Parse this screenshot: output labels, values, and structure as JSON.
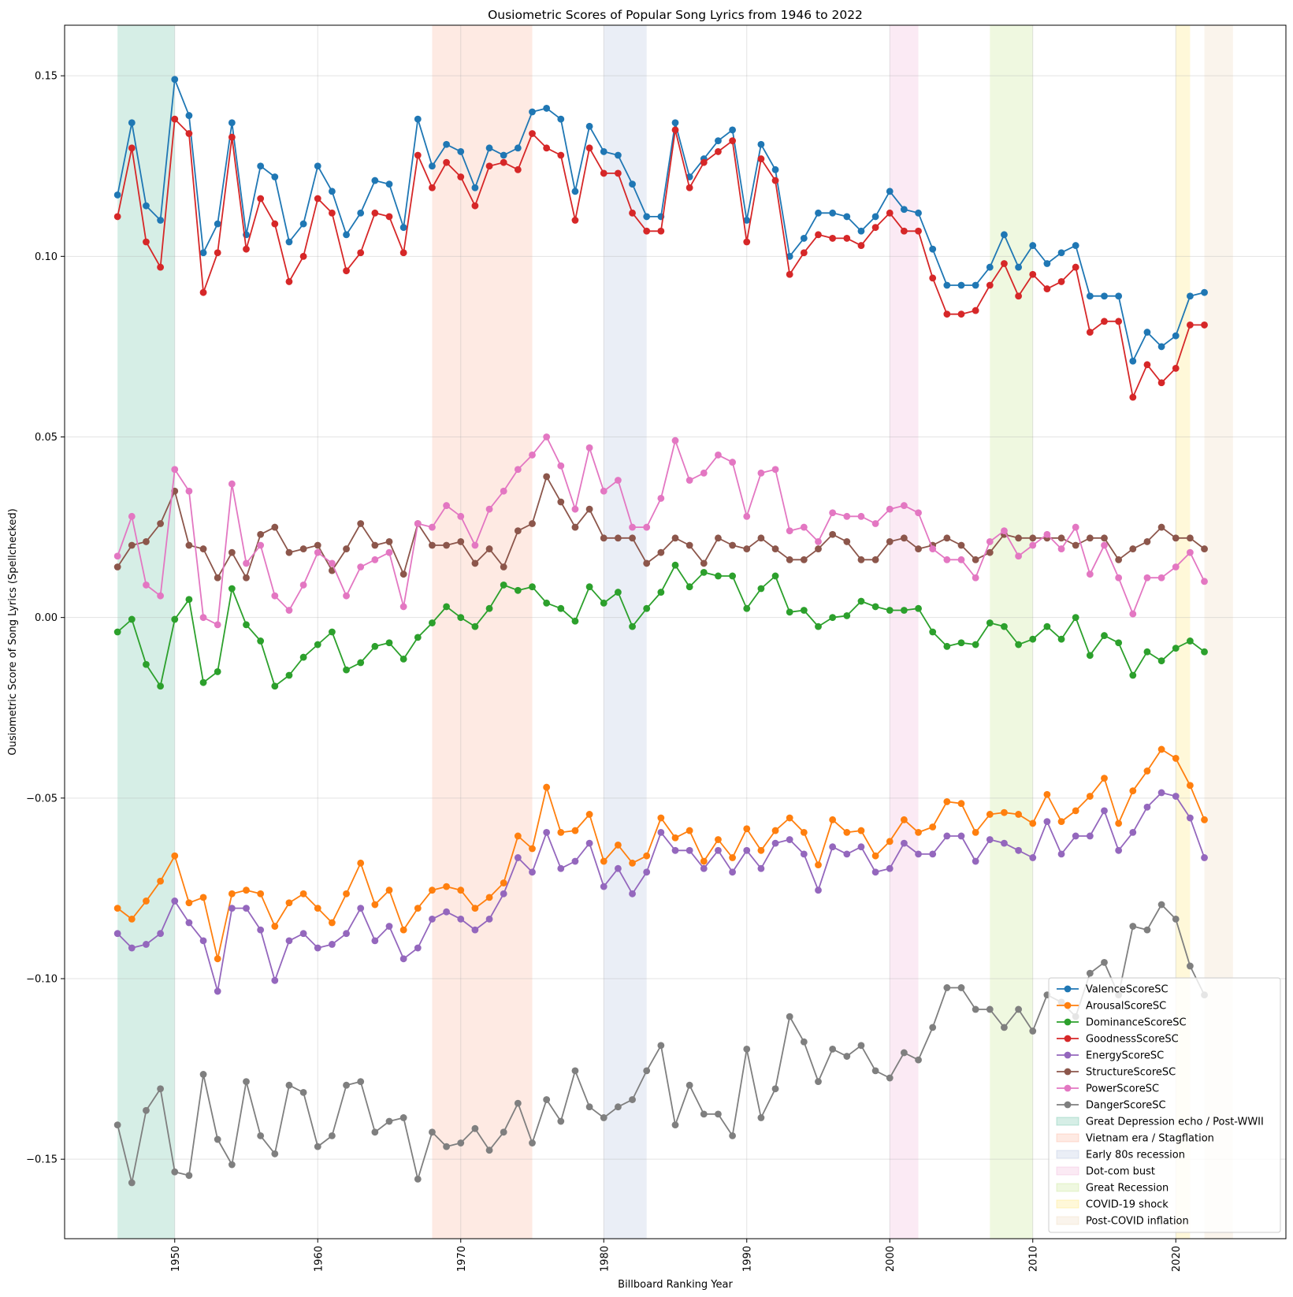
{
  "chart_data": {
    "type": "line",
    "title": "Ousiometric Scores of Popular Song Lyrics from 1946 to 2022",
    "xlabel": "Billboard Ranking Year",
    "ylabel": "Ousiometric Score of Song Lyrics (Spellchecked)",
    "xlim": [
      1942.2,
      1927.9
    ],
    "ylim": [
      -0.172,
      0.164
    ],
    "xticks": [
      "1950",
      "1960",
      "1970",
      "1980",
      "1990",
      "2000",
      "2010",
      "2020"
    ],
    "yticks": [
      "0.15",
      "0.10",
      "0.05",
      "0.00",
      "−0.05",
      "−0.10",
      "−0.15"
    ],
    "grid": true,
    "legend_position": "lower right",
    "x": [
      1946,
      1947,
      1948,
      1949,
      1950,
      1951,
      1952,
      1953,
      1954,
      1955,
      1956,
      1957,
      1958,
      1959,
      1960,
      1961,
      1962,
      1963,
      1964,
      1965,
      1966,
      1967,
      1968,
      1969,
      1970,
      1971,
      1972,
      1973,
      1974,
      1975,
      1976,
      1977,
      1978,
      1979,
      1980,
      1981,
      1982,
      1983,
      1984,
      1985,
      1986,
      1987,
      1988,
      1989,
      1990,
      1991,
      1992,
      1993,
      1994,
      1995,
      1996,
      1997,
      1998,
      1999,
      2000,
      2001,
      2002,
      2003,
      2004,
      2005,
      2006,
      2007,
      2008,
      2009,
      2010,
      2011,
      2012,
      2013,
      2014,
      2015,
      2016,
      2017,
      2018,
      2019,
      2020,
      2021,
      2022
    ],
    "series": [
      {
        "name": "ValenceScoreSC",
        "color": "#1f77b4",
        "values": [
          0.117,
          0.137,
          0.114,
          0.11,
          0.149,
          0.139,
          0.101,
          0.109,
          0.137,
          0.106,
          0.125,
          0.122,
          0.104,
          0.109,
          0.125,
          0.118,
          0.106,
          0.112,
          0.121,
          0.12,
          0.108,
          0.138,
          0.125,
          0.131,
          0.129,
          0.119,
          0.13,
          0.128,
          0.13,
          0.14,
          0.141,
          0.138,
          0.118,
          0.136,
          0.129,
          0.128,
          0.12,
          0.111,
          0.111,
          0.137,
          0.122,
          0.127,
          0.132,
          0.135,
          0.11,
          0.131,
          0.124,
          0.1,
          0.105,
          0.112,
          0.112,
          0.111,
          0.107,
          0.111,
          0.118,
          0.113,
          0.112,
          0.102,
          0.092,
          0.092,
          0.092,
          0.097,
          0.106,
          0.097,
          0.103,
          0.098,
          0.101,
          0.103,
          0.089,
          0.089,
          0.089,
          0.071,
          0.079,
          0.075,
          0.078,
          0.089,
          0.09
        ]
      },
      {
        "name": "ArousalScoreSC",
        "color": "#ff7f0e",
        "values": [
          -0.0805,
          -0.0835,
          -0.0785,
          -0.073,
          -0.066,
          -0.079,
          -0.0775,
          -0.0945,
          -0.0765,
          -0.0755,
          -0.0765,
          -0.0855,
          -0.079,
          -0.0765,
          -0.0805,
          -0.0845,
          -0.0765,
          -0.068,
          -0.0795,
          -0.0755,
          -0.0865,
          -0.0805,
          -0.0755,
          -0.0745,
          -0.0755,
          -0.0805,
          -0.0775,
          -0.0735,
          -0.0605,
          -0.064,
          -0.047,
          -0.0595,
          -0.059,
          -0.0545,
          -0.0675,
          -0.063,
          -0.068,
          -0.066,
          -0.0555,
          -0.061,
          -0.059,
          -0.0675,
          -0.0615,
          -0.0665,
          -0.0585,
          -0.0645,
          -0.059,
          -0.0555,
          -0.0595,
          -0.0685,
          -0.056,
          -0.0595,
          -0.059,
          -0.066,
          -0.062,
          -0.056,
          -0.0595,
          -0.058,
          -0.051,
          -0.0515,
          -0.0595,
          -0.0545,
          -0.054,
          -0.0545,
          -0.057,
          -0.049,
          -0.0565,
          -0.0535,
          -0.0495,
          -0.0445,
          -0.057,
          -0.048,
          -0.0425,
          -0.0365,
          -0.039,
          -0.0465,
          -0.056
        ]
      },
      {
        "name": "DominanceScoreSC",
        "color": "#2ca02c",
        "values": [
          -0.004,
          -0.0005,
          -0.013,
          -0.019,
          -0.0005,
          0.005,
          -0.018,
          -0.015,
          0.008,
          -0.002,
          -0.0065,
          -0.019,
          -0.016,
          -0.011,
          -0.0075,
          -0.004,
          -0.0145,
          -0.0125,
          -0.008,
          -0.007,
          -0.0115,
          -0.0055,
          -0.0015,
          0.003,
          0.0,
          -0.0025,
          0.0025,
          0.009,
          0.0075,
          0.0085,
          0.004,
          0.0025,
          -0.001,
          0.0085,
          0.004,
          0.007,
          -0.0025,
          0.0025,
          0.007,
          0.0145,
          0.0085,
          0.0125,
          0.0115,
          0.0115,
          0.0025,
          0.008,
          0.0115,
          0.0015,
          0.002,
          -0.0025,
          0.0,
          0.0005,
          0.0045,
          0.003,
          0.002,
          0.002,
          0.0025,
          -0.004,
          -0.008,
          -0.007,
          -0.0075,
          -0.0015,
          -0.0025,
          -0.0075,
          -0.006,
          -0.0025,
          -0.006,
          0.0,
          -0.0105,
          -0.005,
          -0.007,
          -0.016,
          -0.0095,
          -0.012,
          -0.0085,
          -0.0065,
          -0.0095
        ]
      },
      {
        "name": "GoodnessScoreSC",
        "color": "#d62728",
        "values": [
          0.111,
          0.13,
          0.104,
          0.097,
          0.138,
          0.134,
          0.09,
          0.101,
          0.133,
          0.102,
          0.116,
          0.109,
          0.093,
          0.1,
          0.116,
          0.112,
          0.096,
          0.101,
          0.112,
          0.111,
          0.101,
          0.128,
          0.119,
          0.126,
          0.122,
          0.114,
          0.125,
          0.126,
          0.124,
          0.134,
          0.13,
          0.128,
          0.11,
          0.13,
          0.123,
          0.123,
          0.112,
          0.107,
          0.107,
          0.135,
          0.119,
          0.126,
          0.129,
          0.132,
          0.104,
          0.127,
          0.121,
          0.095,
          0.101,
          0.106,
          0.105,
          0.105,
          0.103,
          0.108,
          0.112,
          0.107,
          0.107,
          0.094,
          0.084,
          0.084,
          0.085,
          0.092,
          0.098,
          0.089,
          0.095,
          0.091,
          0.093,
          0.097,
          0.079,
          0.082,
          0.082,
          0.061,
          0.07,
          0.065,
          0.069,
          0.081,
          0.081
        ]
      },
      {
        "name": "EnergyScoreSC",
        "color": "#9467bd",
        "values": [
          -0.0875,
          -0.0915,
          -0.0905,
          -0.0875,
          -0.0785,
          -0.0845,
          -0.0895,
          -0.1035,
          -0.0805,
          -0.0805,
          -0.0865,
          -0.1005,
          -0.0895,
          -0.0875,
          -0.0915,
          -0.0905,
          -0.0875,
          -0.0805,
          -0.0895,
          -0.0855,
          -0.0945,
          -0.0915,
          -0.0835,
          -0.0815,
          -0.0835,
          -0.0865,
          -0.0835,
          -0.0765,
          -0.0665,
          -0.0705,
          -0.0595,
          -0.0695,
          -0.0675,
          -0.0625,
          -0.0745,
          -0.0695,
          -0.0765,
          -0.0705,
          -0.0595,
          -0.0645,
          -0.0645,
          -0.0695,
          -0.0645,
          -0.0705,
          -0.0645,
          -0.0695,
          -0.0625,
          -0.0615,
          -0.0655,
          -0.0755,
          -0.0635,
          -0.0655,
          -0.0635,
          -0.0705,
          -0.0695,
          -0.0625,
          -0.0655,
          -0.0655,
          -0.0605,
          -0.0605,
          -0.0675,
          -0.0615,
          -0.0625,
          -0.0645,
          -0.0665,
          -0.0565,
          -0.0655,
          -0.0605,
          -0.0605,
          -0.0535,
          -0.0645,
          -0.0595,
          -0.0525,
          -0.0485,
          -0.0495,
          -0.0555,
          -0.0665
        ]
      },
      {
        "name": "StructureScoreSC",
        "color": "#8c564b",
        "values": [
          0.014,
          0.02,
          0.021,
          0.026,
          0.035,
          0.02,
          0.019,
          0.011,
          0.018,
          0.011,
          0.023,
          0.025,
          0.018,
          0.019,
          0.02,
          0.013,
          0.019,
          0.026,
          0.02,
          0.021,
          0.012,
          0.026,
          0.02,
          0.02,
          0.021,
          0.015,
          0.019,
          0.014,
          0.024,
          0.026,
          0.039,
          0.032,
          0.025,
          0.03,
          0.022,
          0.022,
          0.022,
          0.015,
          0.018,
          0.022,
          0.02,
          0.015,
          0.022,
          0.02,
          0.019,
          0.022,
          0.019,
          0.016,
          0.016,
          0.019,
          0.023,
          0.021,
          0.016,
          0.016,
          0.021,
          0.022,
          0.019,
          0.02,
          0.022,
          0.02,
          0.016,
          0.018,
          0.023,
          0.022,
          0.022,
          0.022,
          0.022,
          0.02,
          0.022,
          0.022,
          0.016,
          0.019,
          0.021,
          0.025,
          0.022,
          0.022,
          0.019
        ]
      },
      {
        "name": "PowerScoreSC",
        "color": "#e377c2",
        "values": [
          0.017,
          0.028,
          0.009,
          0.006,
          0.041,
          0.035,
          0.0,
          -0.002,
          0.037,
          0.015,
          0.02,
          0.006,
          0.002,
          0.009,
          0.018,
          0.015,
          0.006,
          0.014,
          0.016,
          0.018,
          0.003,
          0.026,
          0.025,
          0.031,
          0.028,
          0.02,
          0.03,
          0.035,
          0.041,
          0.045,
          0.05,
          0.042,
          0.03,
          0.047,
          0.035,
          0.038,
          0.025,
          0.025,
          0.033,
          0.049,
          0.038,
          0.04,
          0.045,
          0.043,
          0.028,
          0.04,
          0.041,
          0.024,
          0.025,
          0.021,
          0.029,
          0.028,
          0.028,
          0.026,
          0.03,
          0.031,
          0.029,
          0.019,
          0.016,
          0.016,
          0.011,
          0.021,
          0.024,
          0.017,
          0.02,
          0.023,
          0.019,
          0.025,
          0.012,
          0.02,
          0.011,
          0.001,
          0.011,
          0.011,
          0.014,
          0.018,
          0.01
        ]
      },
      {
        "name": "DangerScoreSC",
        "color": "#7f7f7f",
        "values": [
          -0.1405,
          -0.1565,
          -0.1365,
          -0.1305,
          -0.1535,
          -0.1545,
          -0.1265,
          -0.1445,
          -0.1515,
          -0.1285,
          -0.1435,
          -0.1485,
          -0.1295,
          -0.1315,
          -0.1465,
          -0.1435,
          -0.1295,
          -0.1285,
          -0.1425,
          -0.1395,
          -0.1385,
          -0.1555,
          -0.1425,
          -0.1465,
          -0.1455,
          -0.1415,
          -0.1475,
          -0.1425,
          -0.1345,
          -0.1455,
          -0.1335,
          -0.1395,
          -0.1255,
          -0.1355,
          -0.1385,
          -0.1355,
          -0.1335,
          -0.1255,
          -0.1185,
          -0.1405,
          -0.1295,
          -0.1375,
          -0.1375,
          -0.1435,
          -0.1195,
          -0.1385,
          -0.1305,
          -0.1105,
          -0.1175,
          -0.1285,
          -0.1195,
          -0.1215,
          -0.1185,
          -0.1255,
          -0.1275,
          -0.1205,
          -0.1225,
          -0.1135,
          -0.1025,
          -0.1025,
          -0.1085,
          -0.1085,
          -0.1135,
          -0.1085,
          -0.1145,
          -0.1045,
          -0.1065,
          -0.1105,
          -0.0985,
          -0.0955,
          -0.1045,
          -0.0855,
          -0.0865,
          -0.0795,
          -0.0835,
          -0.0965,
          -0.1045
        ]
      }
    ],
    "shaded_periods": [
      {
        "label": "Great Depression echo / Post-WWII",
        "start": 1946,
        "end": 1950,
        "color": "#1b9e77"
      },
      {
        "label": "Vietnam era / Stagflation",
        "start": 1968,
        "end": 1975,
        "color": "#fc8d62"
      },
      {
        "label": "Early 80s recession",
        "start": 1980,
        "end": 1983,
        "color": "#8da0cb"
      },
      {
        "label": "Dot-com bust",
        "start": 2000,
        "end": 2002,
        "color": "#e78ac3"
      },
      {
        "label": "Great Recession",
        "start": 2007,
        "end": 2010,
        "color": "#a6d854"
      },
      {
        "label": "COVID-19 shock",
        "start": 2020,
        "end": 2021,
        "color": "#ffd92f"
      },
      {
        "label": "Post-COVID inflation",
        "start": 2022,
        "end": 2024,
        "color": "#e5c494"
      }
    ]
  }
}
